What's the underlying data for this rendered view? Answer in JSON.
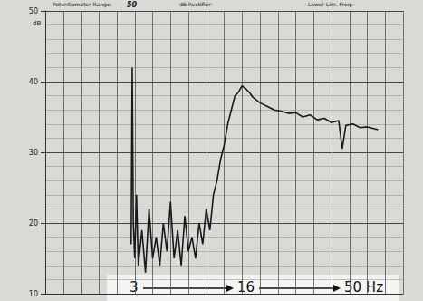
{
  "chart_data": {
    "type": "line",
    "header": [
      "Potentiometer Range:",
      "50",
      "dB Rectifier:",
      "Lower Lim. Freq:"
    ],
    "y_label": "dB",
    "annotation": [
      "3",
      "16",
      "50 Hz"
    ],
    "x": [
      24.0,
      24.3,
      24.6,
      25,
      25.5,
      26,
      27,
      28,
      29,
      30,
      31,
      32,
      33,
      34,
      35,
      36,
      37,
      38,
      39,
      40,
      41,
      42,
      43,
      44,
      45,
      46,
      47,
      48,
      49,
      50,
      51,
      52,
      53,
      54,
      55,
      56,
      57,
      58,
      60,
      62,
      64,
      66,
      68,
      70,
      72,
      74,
      76,
      78,
      80,
      82,
      83,
      84,
      86,
      88,
      90,
      93
    ],
    "values": [
      17,
      42,
      20,
      15,
      24,
      14,
      19,
      13,
      22,
      15,
      18,
      14,
      20,
      16,
      23,
      15,
      19,
      14,
      21,
      16,
      18,
      15,
      20,
      17,
      22,
      19,
      24,
      26,
      29,
      31,
      34,
      36,
      38,
      38.5,
      39.4,
      39,
      38.5,
      37.8,
      37,
      36.5,
      36,
      35.8,
      35.5,
      35.6,
      35,
      35.3,
      34.6,
      34.8,
      34.2,
      34.5,
      30.5,
      33.8,
      34,
      33.5,
      33.6,
      33.2
    ],
    "color": "#1a1a1a",
    "xlim": [
      0,
      100
    ],
    "xticks": [
      0,
      5,
      10,
      15,
      20,
      25,
      30,
      35,
      40,
      45,
      50,
      55,
      60,
      65,
      70,
      75,
      80,
      85,
      90,
      95,
      100
    ],
    "ylim": [
      10,
      50
    ],
    "yticks": [
      10,
      20,
      30,
      40,
      50
    ],
    "grid": true,
    "tick_labels": "y"
  }
}
